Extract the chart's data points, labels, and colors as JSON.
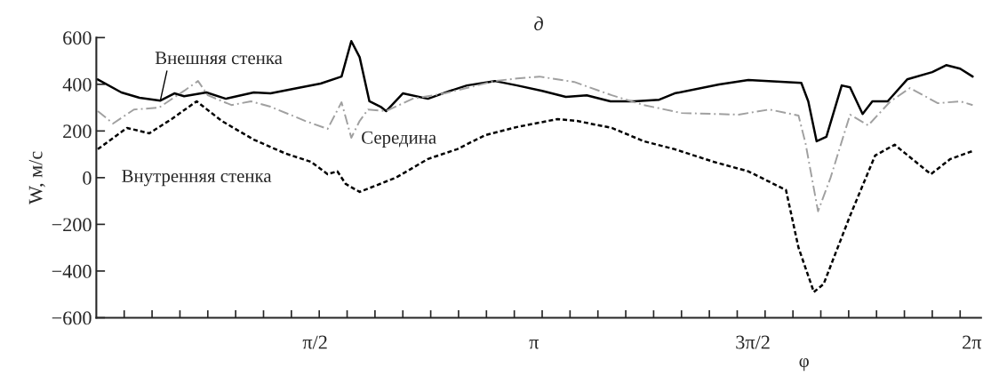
{
  "chart_data": {
    "type": "line",
    "title": "д",
    "xlabel": "φ",
    "ylabel": "W, м/с",
    "xlim": [
      0,
      6.35
    ],
    "ylim": [
      -600,
      600
    ],
    "yticks": [
      -600,
      -400,
      -200,
      0,
      200,
      400,
      600
    ],
    "xticks": [
      {
        "value": 1.5708,
        "label": "π/2"
      },
      {
        "value": 3.1416,
        "label": "π"
      },
      {
        "value": 4.7124,
        "label": "3π/2"
      },
      {
        "value": 6.2832,
        "label": "2π"
      },
      {
        "value": 0.2,
        "label": null
      },
      {
        "value": 0.4,
        "label": null
      },
      {
        "value": 0.6,
        "label": null
      },
      {
        "value": 0.8,
        "label": null
      },
      {
        "value": 1.0,
        "label": null
      },
      {
        "value": 1.2,
        "label": null
      },
      {
        "value": 1.4,
        "label": null
      },
      {
        "value": 1.6,
        "label": null
      },
      {
        "value": 1.8,
        "label": null
      },
      {
        "value": 2.0,
        "label": null
      },
      {
        "value": 2.2,
        "label": null
      },
      {
        "value": 2.4,
        "label": null
      },
      {
        "value": 2.6,
        "label": null
      },
      {
        "value": 2.8,
        "label": null
      },
      {
        "value": 3.0,
        "label": null
      },
      {
        "value": 3.2,
        "label": null
      },
      {
        "value": 3.4,
        "label": null
      },
      {
        "value": 3.6,
        "label": null
      },
      {
        "value": 3.8,
        "label": null
      },
      {
        "value": 4.0,
        "label": null
      },
      {
        "value": 4.2,
        "label": null
      },
      {
        "value": 4.4,
        "label": null
      },
      {
        "value": 4.6,
        "label": null
      },
      {
        "value": 4.8,
        "label": null
      },
      {
        "value": 5.0,
        "label": null
      },
      {
        "value": 5.2,
        "label": null
      },
      {
        "value": 5.4,
        "label": null
      },
      {
        "value": 5.6,
        "label": null
      },
      {
        "value": 5.8,
        "label": null
      },
      {
        "value": 6.0,
        "label": null
      },
      {
        "value": 6.2,
        "label": null
      }
    ],
    "grid": false,
    "legend": false,
    "marker": "none",
    "series": [
      {
        "name": "Внешняя стенка",
        "color": "#000000",
        "line_style": "solid",
        "x": [
          0.01,
          0.18,
          0.31,
          0.46,
          0.56,
          0.63,
          0.79,
          0.93,
          1.13,
          1.25,
          1.47,
          1.61,
          1.76,
          1.83,
          1.89,
          1.96,
          2.04,
          2.08,
          2.2,
          2.38,
          2.54,
          2.66,
          2.86,
          3.02,
          3.2,
          3.37,
          3.52,
          3.69,
          3.86,
          4.04,
          4.15,
          4.47,
          4.68,
          5.06,
          5.11,
          5.17,
          5.24,
          5.35,
          5.41,
          5.5,
          5.57,
          5.68,
          5.82,
          6.0,
          6.1,
          6.2,
          6.29
        ],
        "values": [
          421,
          365,
          342,
          330,
          361,
          349,
          365,
          338,
          365,
          361,
          387,
          403,
          433,
          585,
          516,
          327,
          304,
          285,
          361,
          338,
          372,
          395,
          414,
          395,
          372,
          346,
          353,
          327,
          327,
          334,
          361,
          399,
          418,
          406,
          327,
          156,
          175,
          395,
          387,
          273,
          327,
          327,
          421,
          452,
          482,
          467,
          433
        ]
      },
      {
        "name": "Середина",
        "color": "#a0a0a0",
        "line_style": "dashed",
        "x": [
          0.01,
          0.12,
          0.27,
          0.45,
          0.63,
          0.73,
          0.8,
          0.97,
          1.11,
          1.25,
          1.5,
          1.66,
          1.76,
          1.83,
          1.89,
          1.95,
          2.08,
          2.27,
          2.5,
          2.86,
          3.02,
          3.18,
          3.43,
          3.7,
          3.93,
          4.2,
          4.61,
          4.83,
          5.04,
          5.09,
          5.18,
          5.27,
          5.41,
          5.54,
          5.7,
          5.84,
          6.04,
          6.2,
          6.29
        ],
        "values": [
          285,
          232,
          292,
          300,
          372,
          414,
          353,
          311,
          327,
          304,
          243,
          209,
          323,
          171,
          243,
          292,
          285,
          338,
          361,
          414,
          425,
          433,
          410,
          353,
          311,
          277,
          270,
          292,
          266,
          148,
          -144,
          0,
          270,
          224,
          327,
          384,
          319,
          327,
          311
        ]
      },
      {
        "name": "Внутренняя стенка",
        "color": "#000000",
        "line_style": "dotted",
        "x": [
          0.01,
          0.22,
          0.38,
          0.54,
          0.72,
          0.9,
          1.13,
          1.36,
          1.54,
          1.66,
          1.73,
          1.79,
          1.89,
          2.15,
          2.38,
          2.59,
          2.79,
          3.02,
          3.31,
          3.45,
          3.7,
          3.93,
          4.15,
          4.43,
          4.68,
          4.95,
          5.04,
          5.15,
          5.22,
          5.41,
          5.59,
          5.73,
          5.99,
          6.13,
          6.29
        ],
        "values": [
          122,
          213,
          190,
          251,
          327,
          243,
          163,
          103,
          68,
          15,
          27,
          -27,
          -61,
          0,
          80,
          122,
          182,
          217,
          251,
          243,
          213,
          156,
          122,
          68,
          27,
          -53,
          -300,
          -490,
          -456,
          -163,
          95,
          141,
          15,
          80,
          114
        ]
      }
    ]
  }
}
